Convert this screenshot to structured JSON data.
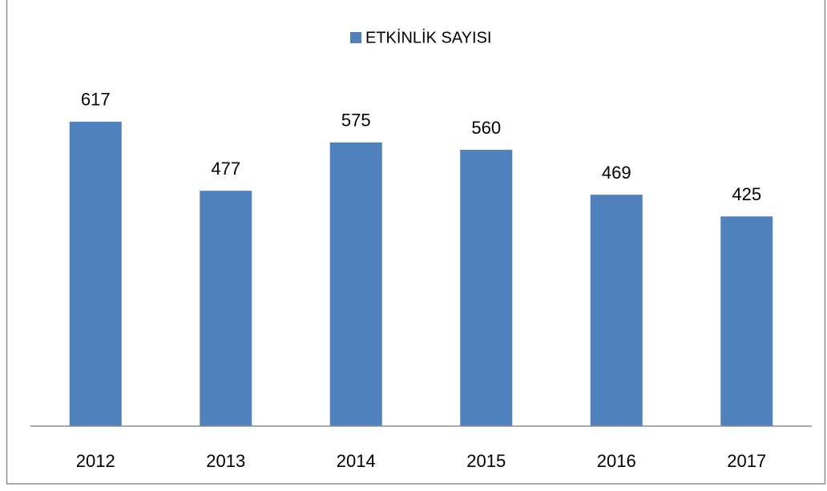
{
  "chart_data": {
    "type": "bar",
    "categories": [
      "2012",
      "2013",
      "2014",
      "2015",
      "2016",
      "2017"
    ],
    "series": [
      {
        "name": "ETKİNLİK SAYISI",
        "color": "#4f81bd",
        "values": [
          617,
          477,
          575,
          560,
          469,
          425
        ]
      }
    ],
    "ylim": [
      0,
      700
    ],
    "legend": "top"
  }
}
